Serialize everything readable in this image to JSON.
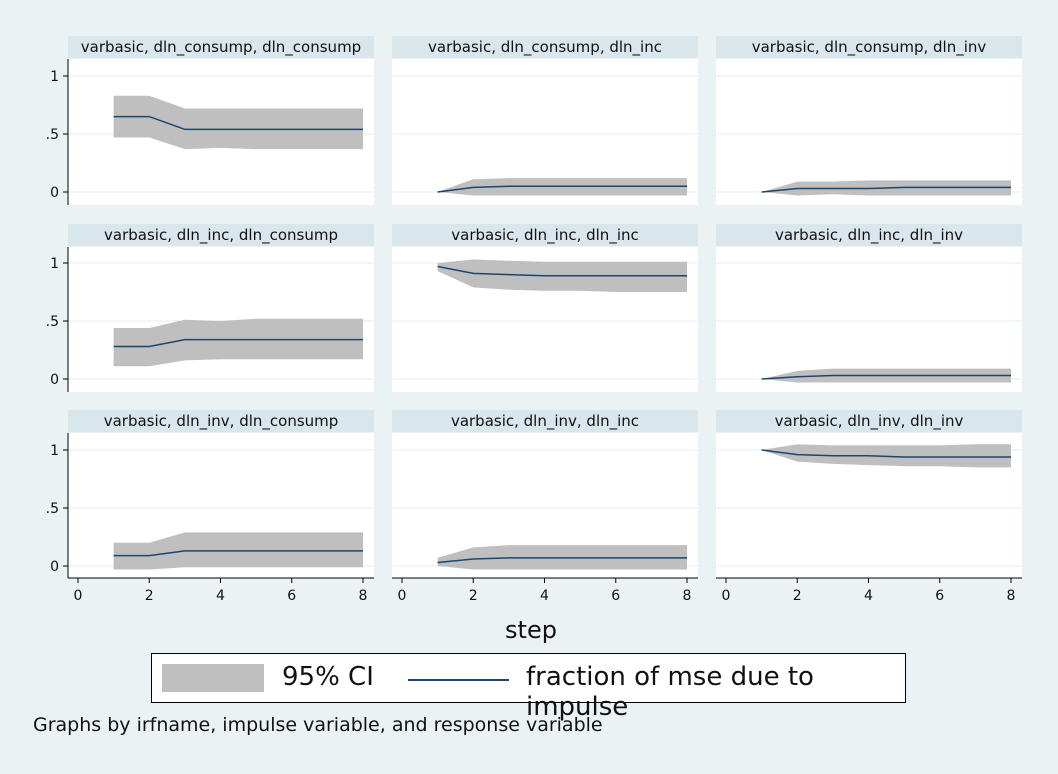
{
  "colors": {
    "background": "#eaf2f3",
    "panel": "#ffffff",
    "strip": "#d9e6eb",
    "ci_band": "#bfbfbf",
    "line": "#1a476f",
    "grid": "#e6eef0"
  },
  "chart_data": {
    "type": "area",
    "layout": "3x3 small multiples",
    "xlabel": "step",
    "xlim": [
      0,
      8
    ],
    "xticks": [
      "0",
      "2",
      "4",
      "6",
      "8"
    ],
    "ylim": [
      -0.05,
      1.1
    ],
    "yticks": [
      {
        "value": 1,
        "label": "1"
      },
      {
        "value": 0.5,
        "label": ".5"
      },
      {
        "value": 0,
        "label": "0"
      }
    ],
    "grid": true,
    "legend": {
      "position": "bottom",
      "entries": [
        "95% CI",
        "fraction of mse due to impulse"
      ]
    },
    "note": "Graphs by irfname, impulse variable, and response variable",
    "panels": [
      {
        "title": "varbasic, dln_consump, dln_consump",
        "x": [
          1,
          2,
          3,
          4,
          5,
          6,
          7,
          8
        ],
        "y": [
          0.65,
          0.65,
          0.54,
          0.54,
          0.54,
          0.54,
          0.54,
          0.54
        ],
        "lower": [
          0.47,
          0.47,
          0.37,
          0.38,
          0.37,
          0.37,
          0.37,
          0.37
        ],
        "upper": [
          0.83,
          0.83,
          0.72,
          0.72,
          0.72,
          0.72,
          0.72,
          0.72
        ]
      },
      {
        "title": "varbasic, dln_consump, dln_inc",
        "x": [
          1,
          2,
          3,
          4,
          5,
          6,
          7,
          8
        ],
        "y": [
          0.0,
          0.04,
          0.05,
          0.05,
          0.05,
          0.05,
          0.05,
          0.05
        ],
        "lower": [
          0.0,
          -0.03,
          -0.03,
          -0.03,
          -0.03,
          -0.03,
          -0.03,
          -0.03
        ],
        "upper": [
          0.0,
          0.11,
          0.12,
          0.12,
          0.12,
          0.12,
          0.12,
          0.12
        ]
      },
      {
        "title": "varbasic, dln_consump, dln_inv",
        "x": [
          1,
          2,
          3,
          4,
          5,
          6,
          7,
          8
        ],
        "y": [
          0.0,
          0.03,
          0.03,
          0.03,
          0.04,
          0.04,
          0.04,
          0.04
        ],
        "lower": [
          0.0,
          -0.03,
          -0.02,
          -0.03,
          -0.03,
          -0.03,
          -0.03,
          -0.03
        ],
        "upper": [
          0.0,
          0.09,
          0.09,
          0.1,
          0.1,
          0.1,
          0.1,
          0.1
        ]
      },
      {
        "title": "varbasic, dln_inc, dln_consump",
        "x": [
          1,
          2,
          3,
          4,
          5,
          6,
          7,
          8
        ],
        "y": [
          0.28,
          0.28,
          0.34,
          0.34,
          0.34,
          0.34,
          0.34,
          0.34
        ],
        "lower": [
          0.11,
          0.11,
          0.16,
          0.17,
          0.17,
          0.17,
          0.17,
          0.17
        ],
        "upper": [
          0.44,
          0.44,
          0.51,
          0.5,
          0.52,
          0.52,
          0.52,
          0.52
        ]
      },
      {
        "title": "varbasic, dln_inc, dln_inc",
        "x": [
          1,
          2,
          3,
          4,
          5,
          6,
          7,
          8
        ],
        "y": [
          0.97,
          0.91,
          0.9,
          0.89,
          0.89,
          0.89,
          0.89,
          0.89
        ],
        "lower": [
          0.93,
          0.79,
          0.77,
          0.76,
          0.76,
          0.75,
          0.75,
          0.75
        ],
        "upper": [
          1.0,
          1.03,
          1.02,
          1.01,
          1.01,
          1.01,
          1.01,
          1.01
        ]
      },
      {
        "title": "varbasic, dln_inc, dln_inv",
        "x": [
          1,
          2,
          3,
          4,
          5,
          6,
          7,
          8
        ],
        "y": [
          0.0,
          0.02,
          0.03,
          0.03,
          0.03,
          0.03,
          0.03,
          0.03
        ],
        "lower": [
          0.0,
          -0.03,
          -0.03,
          -0.03,
          -0.03,
          -0.03,
          -0.03,
          -0.03
        ],
        "upper": [
          0.0,
          0.07,
          0.09,
          0.09,
          0.09,
          0.09,
          0.09,
          0.09
        ]
      },
      {
        "title": "varbasic, dln_inv, dln_consump",
        "x": [
          1,
          2,
          3,
          4,
          5,
          6,
          7,
          8
        ],
        "y": [
          0.09,
          0.09,
          0.13,
          0.13,
          0.13,
          0.13,
          0.13,
          0.13
        ],
        "lower": [
          -0.03,
          -0.03,
          -0.01,
          -0.01,
          -0.01,
          -0.01,
          -0.01,
          -0.01
        ],
        "upper": [
          0.2,
          0.2,
          0.29,
          0.29,
          0.29,
          0.29,
          0.29,
          0.29
        ]
      },
      {
        "title": "varbasic, dln_inv, dln_inc",
        "x": [
          1,
          2,
          3,
          4,
          5,
          6,
          7,
          8
        ],
        "y": [
          0.03,
          0.06,
          0.07,
          0.07,
          0.07,
          0.07,
          0.07,
          0.07
        ],
        "lower": [
          0.0,
          -0.03,
          -0.03,
          -0.03,
          -0.03,
          -0.03,
          -0.03,
          -0.03
        ],
        "upper": [
          0.07,
          0.16,
          0.18,
          0.18,
          0.18,
          0.18,
          0.18,
          0.18
        ]
      },
      {
        "title": "varbasic, dln_inv, dln_inv",
        "x": [
          1,
          2,
          3,
          4,
          5,
          6,
          7,
          8
        ],
        "y": [
          1.0,
          0.96,
          0.95,
          0.95,
          0.94,
          0.94,
          0.94,
          0.94
        ],
        "lower": [
          1.0,
          0.9,
          0.88,
          0.87,
          0.86,
          0.86,
          0.85,
          0.85
        ],
        "upper": [
          1.0,
          1.05,
          1.04,
          1.04,
          1.04,
          1.04,
          1.05,
          1.05
        ]
      }
    ]
  }
}
